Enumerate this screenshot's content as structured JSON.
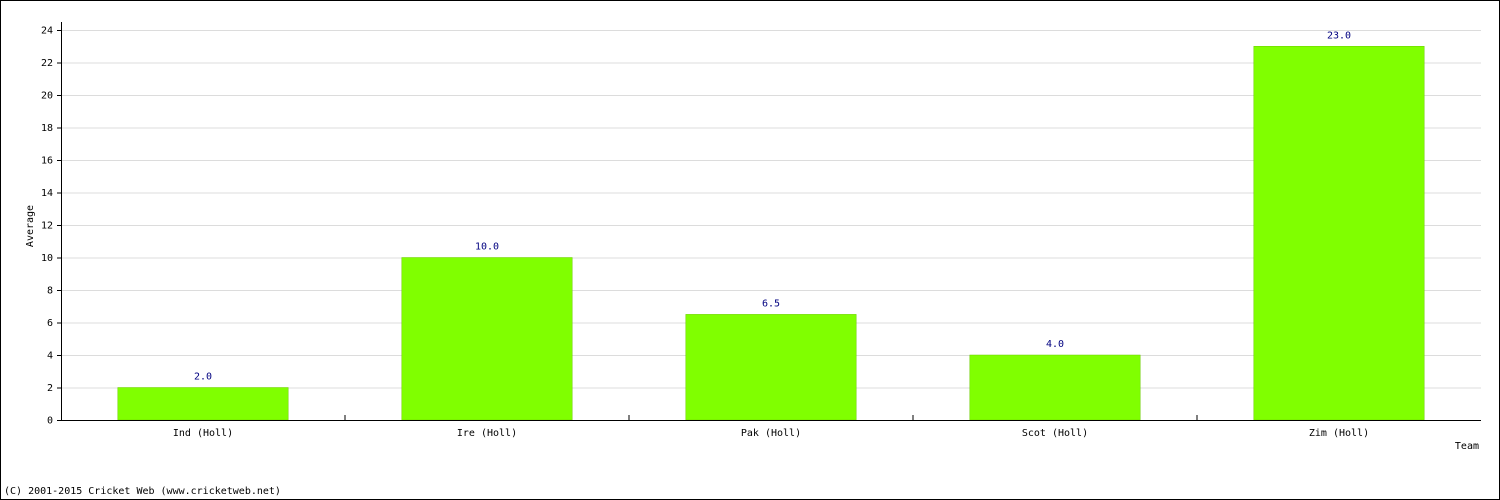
{
  "chart_data": {
    "type": "bar",
    "categories": [
      "Ind (Holl)",
      "Ire (Holl)",
      "Pak (Holl)",
      "Scot (Holl)",
      "Zim (Holl)"
    ],
    "values": [
      2,
      10,
      6.5,
      4,
      23
    ],
    "value_labels": [
      "2.0",
      "10.0",
      "6.5",
      "4.0",
      "23.0"
    ],
    "color": "#80ff00",
    "ylabel": "Average",
    "xlabel": "Team",
    "ylim": [
      0,
      24
    ],
    "yticks": [
      0,
      2,
      4,
      6,
      8,
      10,
      12,
      14,
      16,
      18,
      20,
      22,
      24
    ],
    "grid": true,
    "footer": "(C) 2001-2015 Cricket Web (www.cricketweb.net)"
  }
}
